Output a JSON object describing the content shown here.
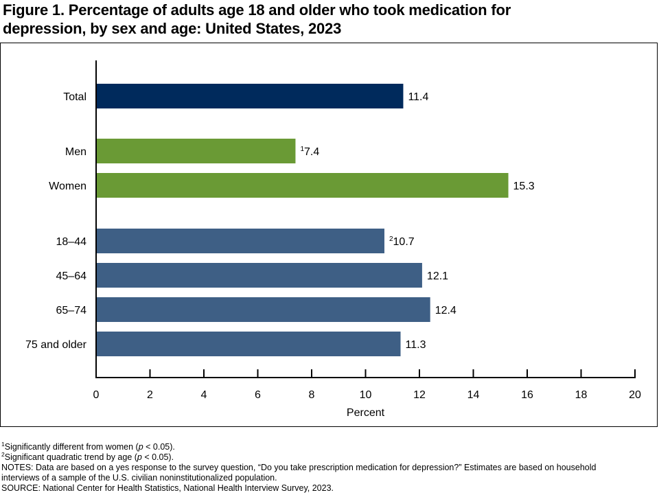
{
  "title": {
    "line1": "Figure 1. Percentage of adults age 18 and older who took medication for",
    "line2": "depression, by sex and age: United States, 2023"
  },
  "colors": {
    "total": "#002a5c",
    "sex": "#6a9a35",
    "age": "#3e5f85",
    "axis": "#000000"
  },
  "chart_data": {
    "type": "bar",
    "orientation": "horizontal",
    "categories": [
      "Total",
      "Men",
      "Women",
      "18–44",
      "45–64",
      "65–74",
      "75 and older"
    ],
    "values": [
      11.4,
      7.4,
      15.3,
      10.7,
      12.1,
      12.4,
      11.3
    ],
    "value_labels": [
      "11.4",
      "7.4",
      "15.3",
      "10.7",
      "12.1",
      "12.4",
      "11.3"
    ],
    "label_superscripts": [
      "",
      "1",
      "",
      "2",
      "",
      "",
      ""
    ],
    "groups": [
      "total",
      "sex",
      "sex",
      "age",
      "age",
      "age",
      "age"
    ],
    "xlabel": "Percent",
    "xlim": [
      0,
      20
    ],
    "xticks": [
      0,
      2,
      4,
      6,
      8,
      10,
      12,
      14,
      16,
      18,
      20
    ],
    "grid": false,
    "legend": false
  },
  "footnotes": {
    "note1": {
      "sup": "1",
      "pre": "Significantly different from women (",
      "p": "p",
      "post": " < 0.05)."
    },
    "note2": {
      "sup": "2",
      "pre": "Significant quadratic trend by age (",
      "p": "p",
      "post": " < 0.05)."
    },
    "notes_line1": "NOTES: Data are based on a yes response to the survey question, “Do you take prescription medication for depression?” Estimates are based on household",
    "notes_line2": "interviews of a sample of the U.S. civilian noninstitutionalized population.",
    "source": "SOURCE: National Center for Health Statistics, National Health Interview Survey, 2023."
  }
}
